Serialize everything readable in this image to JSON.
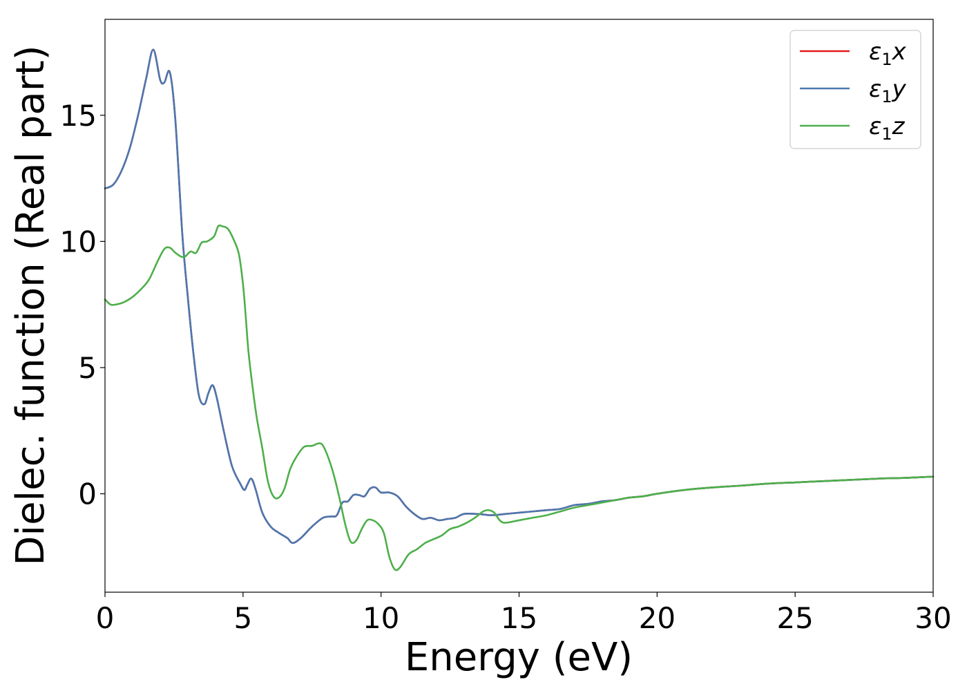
{
  "chart_data": {
    "type": "line",
    "xlabel": "Energy (eV)",
    "ylabel": "Dielec. function (Real part)",
    "xlim": [
      0,
      30
    ],
    "ylim": [
      -3.9,
      18.8
    ],
    "xticks": [
      0,
      5,
      10,
      15,
      20,
      25,
      30
    ],
    "yticks": [
      0,
      5,
      10,
      15
    ],
    "grid": false,
    "legend_position": "top-right",
    "series": [
      {
        "name": "ε₁x",
        "legend_main": "ε",
        "legend_sub": "1",
        "legend_tail": "x",
        "color": "#e41a1c",
        "x": [
          0,
          0.3,
          0.6,
          0.9,
          1.2,
          1.5,
          1.75,
          2.0,
          2.15,
          2.35,
          2.55,
          2.8,
          3.0,
          3.2,
          3.4,
          3.6,
          3.75,
          3.9,
          4.05,
          4.3,
          4.6,
          4.9,
          5.05,
          5.15,
          5.3,
          5.45,
          5.7,
          6.0,
          6.3,
          6.6,
          6.8,
          7.1,
          7.5,
          7.9,
          8.2,
          8.4,
          8.6,
          8.8,
          9.0,
          9.2,
          9.4,
          9.6,
          9.8,
          10.0,
          10.3,
          10.6,
          10.9,
          11.2,
          11.5,
          11.8,
          12.1,
          12.4,
          12.7,
          13.0,
          13.5,
          14.0,
          14.5,
          15.0,
          15.5,
          16.0,
          16.5,
          17.0,
          17.5,
          18.0,
          18.5,
          19.0,
          19.5,
          20.0,
          21.0,
          22.0,
          23.0,
          24.0,
          25.0,
          26.0,
          27.0,
          28.0,
          29.0,
          30.0
        ],
        "y": [
          12.1,
          12.25,
          12.8,
          13.7,
          15.0,
          16.5,
          17.6,
          16.4,
          16.3,
          16.7,
          14.8,
          10.3,
          7.8,
          5.6,
          3.9,
          3.55,
          4.0,
          4.3,
          3.8,
          2.5,
          1.1,
          0.4,
          0.15,
          0.35,
          0.6,
          0.2,
          -0.75,
          -1.3,
          -1.55,
          -1.75,
          -1.95,
          -1.75,
          -1.3,
          -0.95,
          -0.9,
          -0.85,
          -0.35,
          -0.3,
          -0.05,
          -0.05,
          -0.1,
          0.2,
          0.25,
          0.05,
          0.05,
          -0.1,
          -0.5,
          -0.8,
          -1.0,
          -0.95,
          -1.05,
          -1.0,
          -0.95,
          -0.8,
          -0.8,
          -0.85,
          -0.8,
          -0.75,
          -0.7,
          -0.65,
          -0.6,
          -0.45,
          -0.4,
          -0.3,
          -0.25,
          -0.15,
          -0.1,
          0.0,
          0.15,
          0.25,
          0.32,
          0.4,
          0.45,
          0.5,
          0.55,
          0.6,
          0.63,
          0.68
        ]
      },
      {
        "name": "ε₁y",
        "legend_main": "ε",
        "legend_sub": "1",
        "legend_tail": "y",
        "color": "#4a78b0",
        "x": [
          0,
          0.3,
          0.6,
          0.9,
          1.2,
          1.5,
          1.75,
          2.0,
          2.15,
          2.35,
          2.55,
          2.8,
          3.0,
          3.2,
          3.4,
          3.6,
          3.75,
          3.9,
          4.05,
          4.3,
          4.6,
          4.9,
          5.05,
          5.15,
          5.3,
          5.45,
          5.7,
          6.0,
          6.3,
          6.6,
          6.8,
          7.1,
          7.5,
          7.9,
          8.2,
          8.4,
          8.6,
          8.8,
          9.0,
          9.2,
          9.4,
          9.6,
          9.8,
          10.0,
          10.3,
          10.6,
          10.9,
          11.2,
          11.5,
          11.8,
          12.1,
          12.4,
          12.7,
          13.0,
          13.5,
          14.0,
          14.5,
          15.0,
          15.5,
          16.0,
          16.5,
          17.0,
          17.5,
          18.0,
          18.5,
          19.0,
          19.5,
          20.0,
          21.0,
          22.0,
          23.0,
          24.0,
          25.0,
          26.0,
          27.0,
          28.0,
          29.0,
          30.0
        ],
        "y": [
          12.1,
          12.25,
          12.8,
          13.7,
          15.0,
          16.5,
          17.6,
          16.4,
          16.3,
          16.7,
          14.8,
          10.3,
          7.8,
          5.6,
          3.9,
          3.55,
          4.0,
          4.3,
          3.8,
          2.5,
          1.1,
          0.4,
          0.15,
          0.35,
          0.6,
          0.2,
          -0.75,
          -1.3,
          -1.55,
          -1.75,
          -1.95,
          -1.75,
          -1.3,
          -0.95,
          -0.9,
          -0.85,
          -0.35,
          -0.3,
          -0.05,
          -0.05,
          -0.1,
          0.2,
          0.25,
          0.05,
          0.05,
          -0.1,
          -0.5,
          -0.8,
          -1.0,
          -0.95,
          -1.05,
          -1.0,
          -0.95,
          -0.8,
          -0.8,
          -0.85,
          -0.8,
          -0.75,
          -0.7,
          -0.65,
          -0.6,
          -0.45,
          -0.4,
          -0.3,
          -0.25,
          -0.15,
          -0.1,
          0.0,
          0.15,
          0.25,
          0.32,
          0.4,
          0.45,
          0.5,
          0.55,
          0.6,
          0.63,
          0.68
        ]
      },
      {
        "name": "ε₁z",
        "legend_main": "ε",
        "legend_sub": "1",
        "legend_tail": "z",
        "color": "#4daf4a",
        "x": [
          0,
          0.2,
          0.4,
          0.7,
          1.0,
          1.3,
          1.6,
          1.9,
          2.15,
          2.35,
          2.55,
          2.75,
          2.9,
          3.1,
          3.3,
          3.5,
          3.7,
          3.95,
          4.1,
          4.25,
          4.45,
          4.65,
          4.85,
          5.0,
          5.1,
          5.2,
          5.35,
          5.5,
          5.7,
          5.9,
          6.1,
          6.3,
          6.5,
          6.7,
          6.9,
          7.2,
          7.5,
          7.75,
          7.9,
          8.1,
          8.3,
          8.5,
          8.7,
          8.9,
          9.1,
          9.3,
          9.5,
          9.7,
          9.9,
          10.1,
          10.3,
          10.5,
          10.7,
          11.0,
          11.3,
          11.6,
          11.9,
          12.2,
          12.5,
          12.8,
          13.1,
          13.4,
          13.7,
          13.9,
          14.1,
          14.3,
          14.5,
          15.0,
          15.5,
          16.0,
          16.5,
          17.0,
          17.5,
          18.0,
          18.5,
          19.0,
          19.5,
          20.0,
          21.0,
          22.0,
          23.0,
          24.0,
          25.0,
          26.0,
          27.0,
          28.0,
          29.0,
          30.0
        ],
        "y": [
          7.7,
          7.5,
          7.5,
          7.6,
          7.8,
          8.1,
          8.5,
          9.2,
          9.7,
          9.75,
          9.55,
          9.4,
          9.4,
          9.6,
          9.55,
          9.95,
          10.0,
          10.2,
          10.6,
          10.6,
          10.5,
          10.1,
          9.5,
          8.3,
          7.0,
          5.6,
          4.2,
          3.0,
          1.8,
          0.5,
          -0.1,
          -0.15,
          0.2,
          0.95,
          1.4,
          1.85,
          1.9,
          2.0,
          1.9,
          1.4,
          0.7,
          -0.2,
          -1.2,
          -1.9,
          -1.85,
          -1.4,
          -1.05,
          -1.05,
          -1.2,
          -1.55,
          -2.5,
          -3.0,
          -2.9,
          -2.4,
          -2.2,
          -1.95,
          -1.8,
          -1.65,
          -1.4,
          -1.3,
          -1.15,
          -0.95,
          -0.7,
          -0.65,
          -0.75,
          -1.05,
          -1.15,
          -1.05,
          -0.95,
          -0.85,
          -0.7,
          -0.55,
          -0.45,
          -0.35,
          -0.25,
          -0.15,
          -0.1,
          0.0,
          0.15,
          0.25,
          0.32,
          0.4,
          0.45,
          0.5,
          0.55,
          0.6,
          0.63,
          0.68
        ]
      }
    ]
  }
}
